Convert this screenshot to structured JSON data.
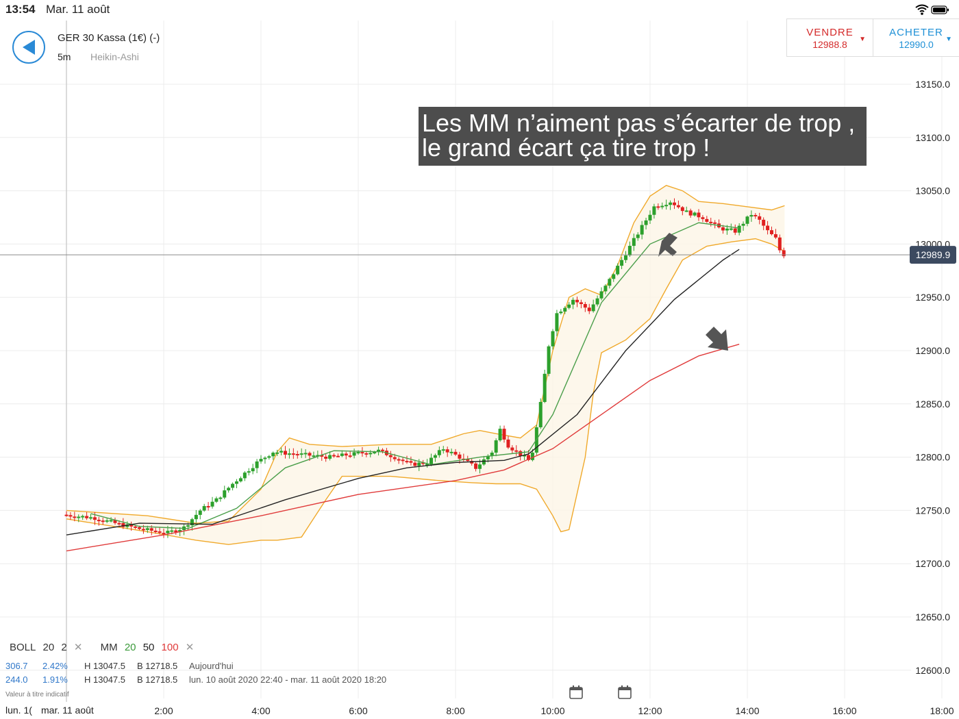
{
  "status": {
    "time": "13:54",
    "date": "Mar. 11 août"
  },
  "instrument": {
    "name": "GER 30 Kassa (1€) (-)",
    "timeframe": "5m",
    "chart_type": "Heikin-Ashi"
  },
  "trade": {
    "sell_label": "VENDRE",
    "sell_price": "12988.8",
    "buy_label": "ACHETER",
    "buy_price": "12990.0"
  },
  "annotation": {
    "line1": "Les MM n’aiment pas s’écarter de trop ,",
    "line2": "le grand écart ça tire trop !"
  },
  "legend": {
    "boll": "BOLL",
    "boll_p1": "20",
    "boll_p2": "2",
    "mm": "MM",
    "mm_p1": "20",
    "mm_p2": "50",
    "mm_p3": "100"
  },
  "info": {
    "row1": {
      "a": "306.7",
      "b": "2.42%",
      "h": "H 13047.5",
      "l": "B 12718.5",
      "period": "Aujourd'hui"
    },
    "row2": {
      "a": "244.0",
      "b": "1.91%",
      "h": "H 13047.5",
      "l": "B 12718.5",
      "period": "lun. 10 août 2020 22:40 - mar. 11 août 2020 18:20"
    }
  },
  "disclaimer": "Valeur à titre indicatif",
  "date_labels": {
    "left": "lun. 1(",
    "right": "mar. 11 août"
  },
  "colors": {
    "up": "#2ca02c",
    "down": "#e02020",
    "boll": "#f0a92b",
    "ma20": "#4a9e4a",
    "ma50": "#222222",
    "ma100": "#e03a3a",
    "price_tag": "#3c4a60"
  },
  "chart_data": {
    "type": "candlestick",
    "x_ticks": [
      "2:00",
      "4:00",
      "6:00",
      "8:00",
      "10:00",
      "12:00",
      "14:00",
      "16:00",
      "18:00"
    ],
    "y_ticks": [
      13150.0,
      13100.0,
      13050.0,
      13000.0,
      12950.0,
      12900.0,
      12850.0,
      12800.0,
      12750.0,
      12700.0,
      12650.0,
      12600.0
    ],
    "ylim": [
      12580,
      13200
    ],
    "current_price": 12989.9,
    "current_price_label": "12989.9",
    "series": [
      {
        "name": "MM 20",
        "time": [
          "0:30",
          "1:30",
          "2:30",
          "3:30",
          "4:30",
          "5:30",
          "6:30",
          "7:30",
          "8:30",
          "9:30",
          "10:00",
          "11:00",
          "12:00",
          "13:00",
          "13:50"
        ],
        "values": [
          12747,
          12735,
          12733,
          12752,
          12790,
          12806,
          12805,
          12793,
          12800,
          12805,
          12840,
          12945,
          13000,
          13020,
          13015
        ]
      },
      {
        "name": "MM 50",
        "time": [
          "0:00",
          "1:30",
          "3:00",
          "4:30",
          "6:00",
          "7:00",
          "8:00",
          "9:00",
          "9:30",
          "10:30",
          "11:30",
          "12:30",
          "13:30",
          "13:50"
        ],
        "values": [
          12727,
          12738,
          12737,
          12760,
          12780,
          12790,
          12795,
          12797,
          12803,
          12840,
          12900,
          12948,
          12985,
          12995
        ]
      },
      {
        "name": "MM 100",
        "time": [
          "0:00",
          "2:00",
          "4:00",
          "6:00",
          "8:00",
          "9:00",
          "10:00",
          "11:00",
          "12:00",
          "13:00",
          "13:50"
        ],
        "values": [
          12712,
          12727,
          12745,
          12765,
          12778,
          12788,
          12808,
          12840,
          12872,
          12895,
          12906
        ]
      }
    ]
  }
}
